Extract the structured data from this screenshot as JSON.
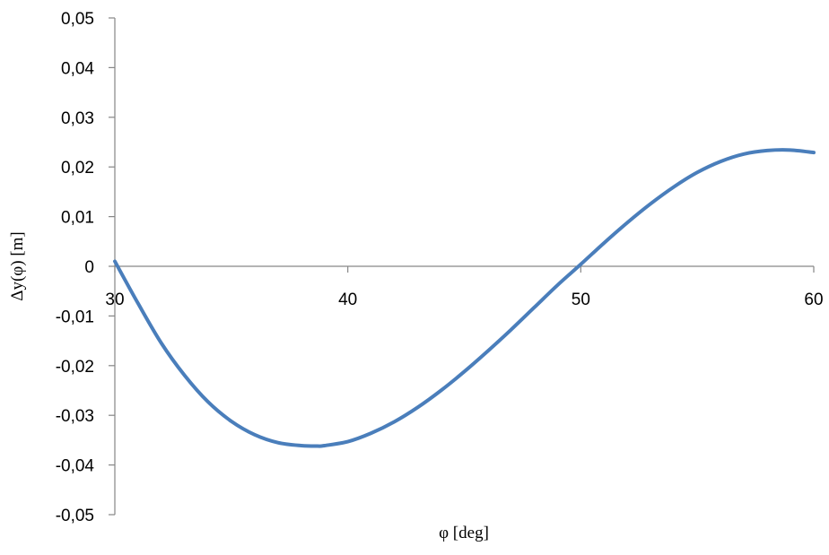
{
  "chart_data": {
    "type": "line",
    "title": "",
    "xlabel": "φ [deg]",
    "ylabel": "Δy(φ) [m]",
    "xlim": [
      30,
      60
    ],
    "ylim": [
      -0.05,
      0.05
    ],
    "x_ticks": [
      30,
      40,
      50,
      60
    ],
    "x_tick_labels": [
      "30",
      "40",
      "50",
      "60"
    ],
    "y_ticks": [
      0.05,
      0.04,
      0.03,
      0.02,
      0.01,
      0,
      -0.01,
      -0.02,
      -0.03,
      -0.04,
      -0.05
    ],
    "y_tick_labels": [
      "0,05",
      "0,04",
      "0,03",
      "0,02",
      "0,01",
      "0",
      "-0,01",
      "-0,02",
      "-0,03",
      "-0,04",
      "-0,05"
    ],
    "grid": false,
    "legend": "none",
    "series": [
      {
        "color": "#4a7ebb",
        "x": [
          30,
          31,
          32,
          33,
          34,
          35,
          36,
          37,
          38,
          38.7,
          39,
          40,
          41,
          42,
          43,
          44,
          45,
          46,
          47,
          48,
          49,
          50,
          51,
          52,
          53,
          54,
          55,
          56,
          57,
          58,
          59,
          60
        ],
        "y": [
          0.001,
          -0.0075,
          -0.0155,
          -0.022,
          -0.0273,
          -0.0312,
          -0.0339,
          -0.0355,
          -0.0361,
          -0.0362,
          -0.0361,
          -0.0353,
          -0.0336,
          -0.0313,
          -0.0284,
          -0.025,
          -0.0212,
          -0.0171,
          -0.0128,
          -0.0083,
          -0.0038,
          0.0004,
          0.0047,
          0.0088,
          0.0126,
          0.016,
          0.0189,
          0.0211,
          0.0226,
          0.0233,
          0.0234,
          0.0229
        ]
      }
    ]
  }
}
